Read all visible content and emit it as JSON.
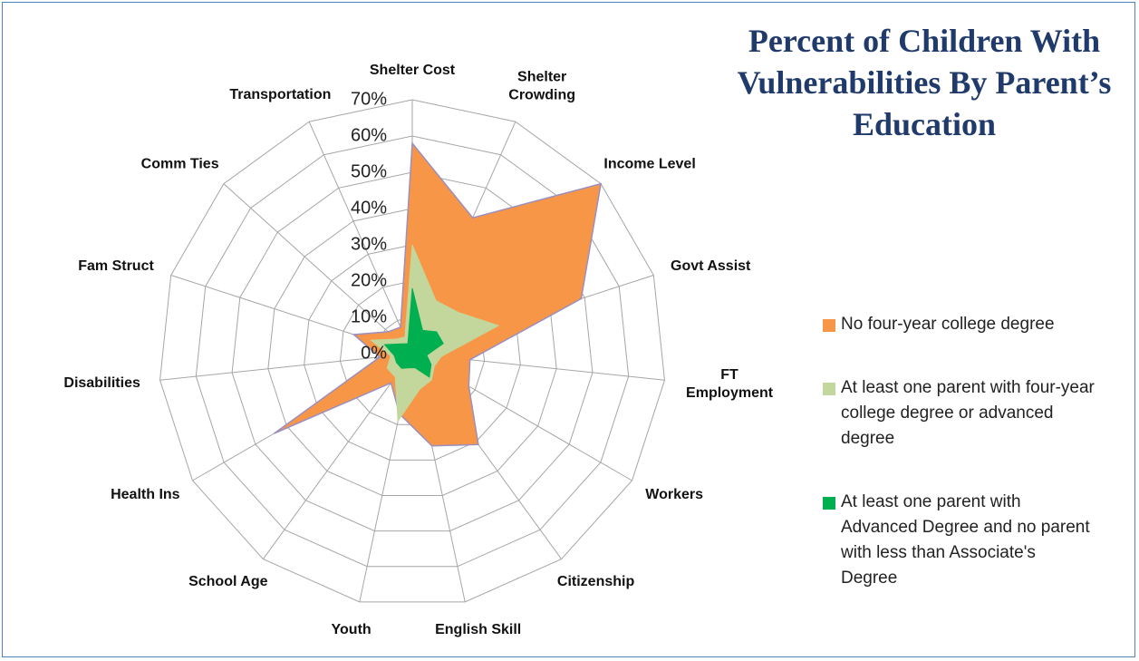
{
  "chart_data": {
    "type": "radar",
    "title": "Percent of Children With Vulnerabilities By Parent’s Education",
    "categories": [
      "Shelter Cost",
      "Shelter Crowding",
      "Income Level",
      "Govt Assist",
      "FT Employment",
      "Workers",
      "Citizenship",
      "English Skill",
      "Youth",
      "School Age",
      "Health Ins",
      "Disabilities",
      "Fam Struct",
      "Comm Ties",
      "Transportation"
    ],
    "series": [
      {
        "name": "No four-year college degree",
        "color": "#f79646",
        "values": [
          58,
          41,
          70,
          49,
          16,
          18,
          31,
          26,
          17,
          10,
          44,
          9,
          17,
          9,
          8
        ]
      },
      {
        "name": "At least one parent with four-year college degree or advanced degree",
        "color": "#c3d69b",
        "values": [
          30,
          16,
          17,
          25,
          8,
          7,
          9,
          10,
          19,
          8,
          8,
          6,
          12,
          6,
          5
        ]
      },
      {
        "name": "At least one parent with Advanced Degree and no parent with less than Associate's Degree",
        "color": "#00b050",
        "values": [
          18,
          7,
          9,
          9,
          4,
          6,
          8,
          4,
          4,
          5,
          5,
          5,
          8,
          4,
          3
        ]
      }
    ],
    "ylim": [
      0,
      70
    ],
    "yticks": [
      {
        "value": 0,
        "label": "0%"
      },
      {
        "value": 10,
        "label": "10%"
      },
      {
        "value": 20,
        "label": "20%"
      },
      {
        "value": 30,
        "label": "30%"
      },
      {
        "value": 40,
        "label": "40%"
      },
      {
        "value": 50,
        "label": "50%"
      },
      {
        "value": 60,
        "label": "60%"
      },
      {
        "value": 70,
        "label": "70%"
      }
    ],
    "grid": true
  }
}
